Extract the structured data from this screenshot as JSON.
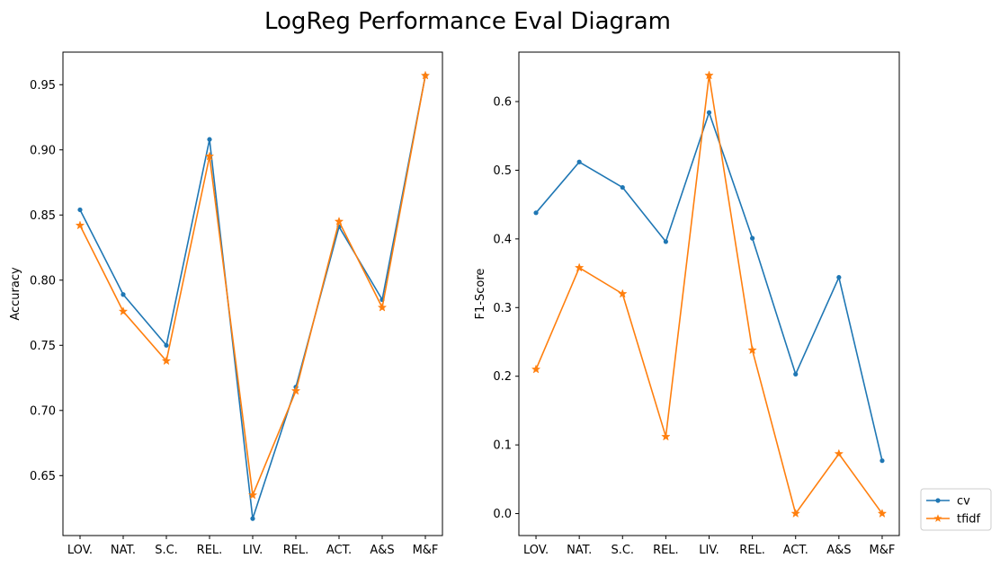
{
  "figure": {
    "title": "LogReg Performance Eval Diagram"
  },
  "colors": {
    "cv": "#1f77b4",
    "tfidf": "#ff7f0e"
  },
  "legend": {
    "placement": "lower-right outside",
    "entries": [
      "cv",
      "tfidf"
    ]
  },
  "chart_data": [
    {
      "type": "line",
      "title": "",
      "xlabel": "",
      "ylabel": "Accuracy",
      "categories": [
        "LOV.",
        "NAT.",
        "S.C.",
        "REL.",
        "LIV.",
        "REL.",
        "ACT.",
        "A&S",
        "M&F"
      ],
      "ylim": [
        0.604,
        0.975
      ],
      "yticks": [
        0.65,
        0.7,
        0.75,
        0.8,
        0.85,
        0.9,
        0.95
      ],
      "ytick_labels": [
        "0.65",
        "0.70",
        "0.75",
        "0.80",
        "0.85",
        "0.90",
        "0.95"
      ],
      "grid": false,
      "series": [
        {
          "name": "cv",
          "marker": "dot",
          "values": [
            0.854,
            0.789,
            0.75,
            0.908,
            0.617,
            0.718,
            0.841,
            0.785,
            0.957
          ]
        },
        {
          "name": "tfidf",
          "marker": "star",
          "values": [
            0.842,
            0.776,
            0.738,
            0.895,
            0.635,
            0.715,
            0.845,
            0.779,
            0.957
          ]
        }
      ]
    },
    {
      "type": "line",
      "title": "",
      "xlabel": "",
      "ylabel": "F1-Score",
      "categories": [
        "LOV.",
        "NAT.",
        "S.C.",
        "REL.",
        "LIV.",
        "REL.",
        "ACT.",
        "A&S",
        "M&F"
      ],
      "ylim": [
        -0.032,
        0.672
      ],
      "yticks": [
        0.0,
        0.1,
        0.2,
        0.3,
        0.4,
        0.5,
        0.6
      ],
      "ytick_labels": [
        "0.0",
        "0.1",
        "0.2",
        "0.3",
        "0.4",
        "0.5",
        "0.6"
      ],
      "grid": false,
      "series": [
        {
          "name": "cv",
          "marker": "dot",
          "values": [
            0.438,
            0.512,
            0.475,
            0.396,
            0.584,
            0.401,
            0.203,
            0.344,
            0.077
          ]
        },
        {
          "name": "tfidf",
          "marker": "star",
          "values": [
            0.21,
            0.358,
            0.32,
            0.112,
            0.638,
            0.238,
            0.0,
            0.087,
            0.0
          ]
        }
      ]
    }
  ]
}
